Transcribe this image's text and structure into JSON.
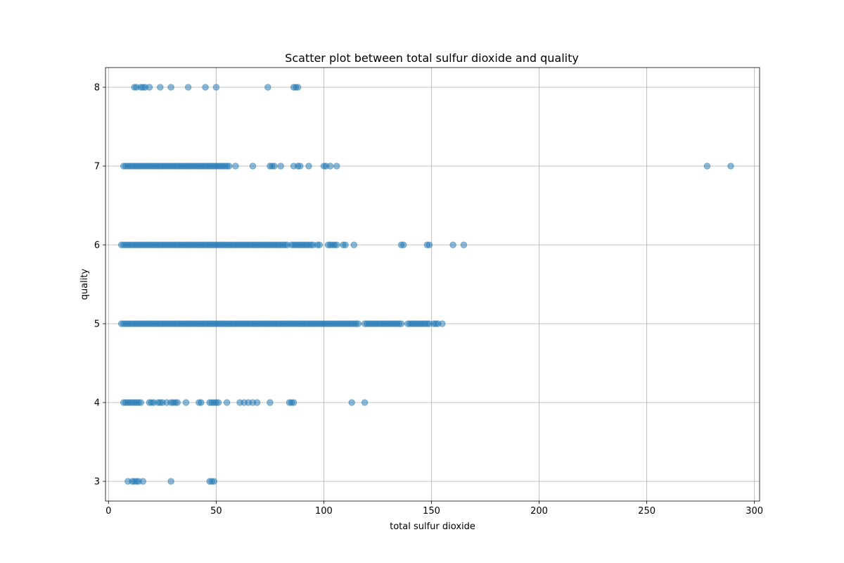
{
  "chart_data": {
    "type": "scatter",
    "title": "Scatter plot between total sulfur dioxide and quality",
    "xlabel": "total sulfur dioxide",
    "ylabel": "quality",
    "xlim": [
      -1.4,
      302.4
    ],
    "ylim": [
      2.75,
      8.25
    ],
    "xticks": [
      0,
      50,
      100,
      150,
      200,
      250,
      300
    ],
    "yticks": [
      3,
      4,
      5,
      6,
      7,
      8
    ],
    "grid": true,
    "marker_color": "#1f77b4",
    "marker_alpha": 0.5,
    "series": [
      {
        "x": [
          9,
          11,
          12,
          13,
          14,
          16,
          29,
          47,
          48,
          49
        ],
        "y": [
          3,
          3,
          3,
          3,
          3,
          3,
          3,
          3,
          3,
          3
        ]
      },
      {
        "x": [
          7,
          8,
          9,
          10,
          11,
          12,
          13,
          14,
          15,
          19,
          20,
          21,
          23,
          24,
          25,
          27,
          29,
          30,
          31,
          32,
          36,
          42,
          43,
          47,
          48,
          49,
          50,
          51,
          55,
          61,
          63,
          65,
          67,
          69,
          75,
          84,
          85,
          86,
          113,
          119
        ],
        "y": [
          4,
          4,
          4,
          4,
          4,
          4,
          4,
          4,
          4,
          4,
          4,
          4,
          4,
          4,
          4,
          4,
          4,
          4,
          4,
          4,
          4,
          4,
          4,
          4,
          4,
          4,
          4,
          4,
          4,
          4,
          4,
          4,
          4,
          4,
          4,
          4,
          4,
          4,
          4,
          4
        ]
      },
      {
        "x": [
          6,
          7,
          8,
          9,
          10,
          11,
          12,
          13,
          14,
          15,
          16,
          17,
          18,
          19,
          20,
          21,
          22,
          23,
          24,
          25,
          26,
          27,
          28,
          29,
          30,
          31,
          32,
          33,
          34,
          35,
          36,
          37,
          38,
          39,
          40,
          41,
          42,
          43,
          44,
          45,
          46,
          47,
          48,
          49,
          50,
          51,
          52,
          53,
          54,
          55,
          56,
          57,
          58,
          59,
          60,
          61,
          62,
          63,
          64,
          65,
          66,
          67,
          68,
          69,
          70,
          71,
          72,
          73,
          74,
          75,
          76,
          77,
          78,
          79,
          80,
          81,
          82,
          83,
          84,
          85,
          86,
          87,
          88,
          89,
          90,
          91,
          92,
          93,
          94,
          95,
          96,
          97,
          98,
          99,
          100,
          101,
          102,
          103,
          104,
          105,
          106,
          107,
          108,
          109,
          110,
          111,
          112,
          113,
          114,
          115,
          116,
          119,
          120,
          121,
          122,
          123,
          124,
          125,
          126,
          127,
          128,
          129,
          130,
          131,
          132,
          133,
          134,
          135,
          136,
          139,
          140,
          141,
          142,
          143,
          144,
          145,
          146,
          147,
          148,
          149,
          151,
          152,
          153,
          155
        ],
        "y": [
          5,
          5,
          5,
          5,
          5,
          5,
          5,
          5,
          5,
          5,
          5,
          5,
          5,
          5,
          5,
          5,
          5,
          5,
          5,
          5,
          5,
          5,
          5,
          5,
          5,
          5,
          5,
          5,
          5,
          5,
          5,
          5,
          5,
          5,
          5,
          5,
          5,
          5,
          5,
          5,
          5,
          5,
          5,
          5,
          5,
          5,
          5,
          5,
          5,
          5,
          5,
          5,
          5,
          5,
          5,
          5,
          5,
          5,
          5,
          5,
          5,
          5,
          5,
          5,
          5,
          5,
          5,
          5,
          5,
          5,
          5,
          5,
          5,
          5,
          5,
          5,
          5,
          5,
          5,
          5,
          5,
          5,
          5,
          5,
          5,
          5,
          5,
          5,
          5,
          5,
          5,
          5,
          5,
          5,
          5,
          5,
          5,
          5,
          5,
          5,
          5,
          5,
          5,
          5,
          5,
          5,
          5,
          5,
          5,
          5,
          5,
          5,
          5,
          5,
          5,
          5,
          5,
          5,
          5,
          5,
          5,
          5,
          5,
          5,
          5,
          5,
          5,
          5,
          5,
          5,
          5,
          5,
          5,
          5,
          5,
          5,
          5,
          5,
          5,
          5,
          5,
          5,
          5,
          5
        ]
      },
      {
        "x": [
          6,
          7,
          8,
          9,
          10,
          11,
          12,
          13,
          14,
          15,
          16,
          17,
          18,
          19,
          20,
          21,
          22,
          23,
          24,
          25,
          26,
          27,
          28,
          29,
          30,
          31,
          32,
          33,
          34,
          35,
          36,
          37,
          38,
          39,
          40,
          41,
          42,
          43,
          44,
          45,
          46,
          47,
          48,
          49,
          50,
          51,
          52,
          53,
          54,
          55,
          56,
          57,
          58,
          59,
          60,
          61,
          62,
          63,
          64,
          65,
          66,
          67,
          68,
          69,
          70,
          71,
          72,
          73,
          74,
          75,
          76,
          77,
          78,
          79,
          80,
          81,
          82,
          83,
          85,
          86,
          87,
          88,
          89,
          90,
          91,
          92,
          93,
          94,
          95,
          97,
          98,
          102,
          103,
          104,
          105,
          106,
          109,
          110,
          114,
          136,
          137,
          148,
          149,
          160,
          165
        ],
        "y": [
          6,
          6,
          6,
          6,
          6,
          6,
          6,
          6,
          6,
          6,
          6,
          6,
          6,
          6,
          6,
          6,
          6,
          6,
          6,
          6,
          6,
          6,
          6,
          6,
          6,
          6,
          6,
          6,
          6,
          6,
          6,
          6,
          6,
          6,
          6,
          6,
          6,
          6,
          6,
          6,
          6,
          6,
          6,
          6,
          6,
          6,
          6,
          6,
          6,
          6,
          6,
          6,
          6,
          6,
          6,
          6,
          6,
          6,
          6,
          6,
          6,
          6,
          6,
          6,
          6,
          6,
          6,
          6,
          6,
          6,
          6,
          6,
          6,
          6,
          6,
          6,
          6,
          6,
          6,
          6,
          6,
          6,
          6,
          6,
          6,
          6,
          6,
          6,
          6,
          6,
          6,
          6,
          6,
          6,
          6,
          6,
          6,
          6,
          6,
          6,
          6,
          6,
          6,
          6,
          6
        ]
      },
      {
        "x": [
          7,
          8,
          9,
          10,
          11,
          12,
          13,
          14,
          15,
          16,
          17,
          18,
          19,
          20,
          21,
          22,
          23,
          24,
          25,
          26,
          27,
          28,
          29,
          30,
          31,
          32,
          33,
          34,
          35,
          36,
          37,
          38,
          39,
          40,
          41,
          42,
          43,
          44,
          45,
          46,
          47,
          48,
          49,
          50,
          51,
          52,
          53,
          54,
          55,
          56,
          59,
          67,
          75,
          76,
          77,
          80,
          86,
          88,
          89,
          93,
          100,
          101,
          103,
          106,
          278,
          289
        ],
        "y": [
          7,
          7,
          7,
          7,
          7,
          7,
          7,
          7,
          7,
          7,
          7,
          7,
          7,
          7,
          7,
          7,
          7,
          7,
          7,
          7,
          7,
          7,
          7,
          7,
          7,
          7,
          7,
          7,
          7,
          7,
          7,
          7,
          7,
          7,
          7,
          7,
          7,
          7,
          7,
          7,
          7,
          7,
          7,
          7,
          7,
          7,
          7,
          7,
          7,
          7,
          7,
          7,
          7,
          7,
          7,
          7,
          7,
          7,
          7,
          7,
          7,
          7,
          7,
          7,
          7,
          7
        ]
      },
      {
        "x": [
          12,
          13,
          15,
          16,
          17,
          19,
          24,
          29,
          37,
          45,
          50,
          74,
          86,
          87,
          88
        ],
        "y": [
          8,
          8,
          8,
          8,
          8,
          8,
          8,
          8,
          8,
          8,
          8,
          8,
          8,
          8,
          8
        ]
      }
    ]
  }
}
